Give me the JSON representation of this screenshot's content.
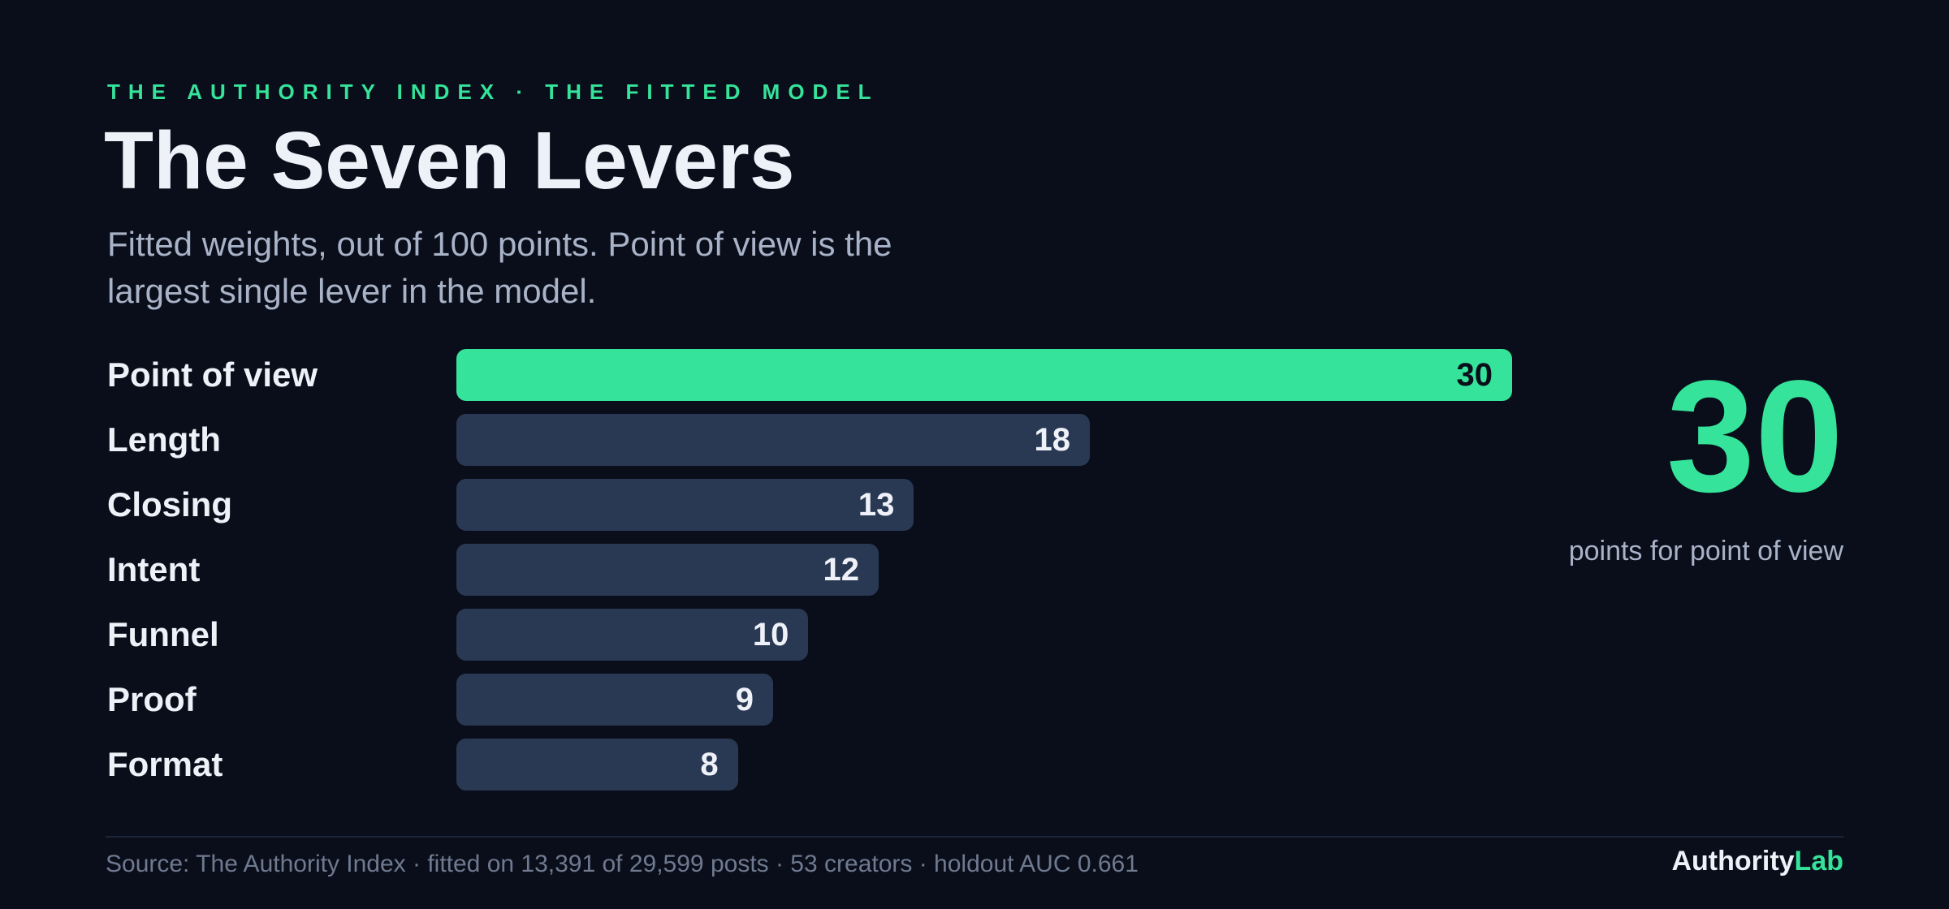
{
  "header": {
    "eyebrow": "THE AUTHORITY INDEX · THE FITTED MODEL",
    "title": "The Seven Levers",
    "subtitle": "Fitted weights, out of 100 points. Point of view is the largest single lever in the model."
  },
  "chart_data": {
    "type": "bar",
    "orientation": "horizontal",
    "title": "The Seven Levers",
    "subtitle": "Fitted weights, out of 100 points. Point of view is the largest single lever in the model.",
    "categories": [
      "Point of view",
      "Length",
      "Closing",
      "Intent",
      "Funnel",
      "Proof",
      "Format"
    ],
    "values": [
      30,
      18,
      13,
      12,
      10,
      9,
      8
    ],
    "xlim": [
      0,
      30
    ],
    "highlight_index": 0,
    "grid": false,
    "legend": "none",
    "data_labels": true
  },
  "callout": {
    "value": "30",
    "caption": "points for point of view"
  },
  "footer": {
    "source": "Source: The Authority Index · fitted on 13,391 of 29,599 posts · 53 creators · holdout AUC 0.661",
    "brand_a": "Authority",
    "brand_b": "Lab"
  },
  "colors": {
    "background": "#0a0e1a",
    "accent": "#35e39a",
    "bar": "#2a3953",
    "text": "#eef1f8",
    "muted": "#a9b3c8"
  }
}
